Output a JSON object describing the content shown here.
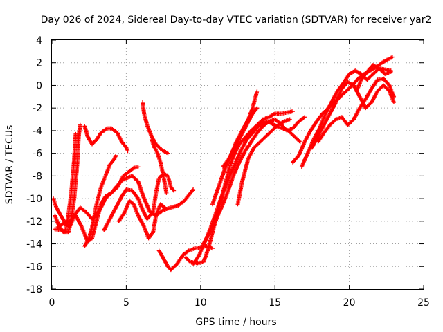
{
  "chart_data": {
    "type": "scatter",
    "title": "Day 026 of 2024, Sidereal Day-to-day VTEC variation (SDTVAR) for receiver yar2",
    "xlabel": "GPS time / hours",
    "ylabel": "SDTVAR / TECUs",
    "xlim": [
      0,
      25
    ],
    "ylim": [
      -18,
      4
    ],
    "x_ticks": [
      0,
      5,
      10,
      15,
      20,
      25
    ],
    "y_ticks": [
      -18,
      -16,
      -14,
      -12,
      -10,
      -8,
      -6,
      -4,
      -2,
      0,
      2,
      4
    ],
    "x_tick_labels": [
      "0",
      "5",
      "10",
      "15",
      "20",
      "25"
    ],
    "y_tick_labels": [
      "-18",
      "-16",
      "-14",
      "-12",
      "-10",
      "-8",
      "-6",
      "-4",
      "-2",
      "0",
      "2",
      "4"
    ],
    "grid": true,
    "marker": "plus",
    "color": "#ff0000",
    "series": [
      {
        "points": [
          [
            0.1,
            -10
          ],
          [
            0.3,
            -10.8
          ],
          [
            0.6,
            -11.5
          ],
          [
            0.9,
            -12.2
          ],
          [
            1.2,
            -12.5
          ],
          [
            1.5,
            -11.5
          ],
          [
            1.9,
            -10.8
          ],
          [
            2.3,
            -11.2
          ],
          [
            2.7,
            -11.8
          ],
          [
            3.0,
            -11.5
          ],
          [
            3.3,
            -10.8
          ],
          [
            3.6,
            -10.0
          ],
          [
            4.0,
            -9.5
          ],
          [
            4.3,
            -9.0
          ],
          [
            4.7,
            -8.4
          ],
          [
            5.0,
            -8.2
          ],
          [
            5.4,
            -8.0
          ],
          [
            5.8,
            -8.5
          ],
          [
            6.2,
            -10.0
          ],
          [
            6.6,
            -11.2
          ],
          [
            7.0,
            -11.5
          ],
          [
            7.5,
            -11.0
          ],
          [
            8.0,
            -10.8
          ],
          [
            8.5,
            -10.6
          ],
          [
            8.9,
            -10.2
          ],
          [
            9.2,
            -9.7
          ],
          [
            9.5,
            -9.2
          ]
        ]
      },
      {
        "points": [
          [
            0.2,
            -11.5
          ],
          [
            0.5,
            -12.5
          ],
          [
            0.8,
            -13.0
          ],
          [
            1.1,
            -13.0
          ],
          [
            1.3,
            -11.8
          ],
          [
            1.5,
            -10.0
          ],
          [
            1.7,
            -7.0
          ],
          [
            1.8,
            -4.5
          ],
          [
            1.9,
            -3.5
          ]
        ]
      },
      {
        "points": [
          [
            0.2,
            -12.7
          ],
          [
            0.6,
            -12.8
          ],
          [
            0.9,
            -12.9
          ],
          [
            1.1,
            -11.5
          ],
          [
            1.3,
            -9.5
          ],
          [
            1.5,
            -6.5
          ],
          [
            1.6,
            -4.3
          ]
        ]
      },
      {
        "points": [
          [
            0.4,
            -12.5
          ],
          [
            0.8,
            -12.2
          ],
          [
            1.2,
            -12.0
          ],
          [
            1.6,
            -11.5
          ],
          [
            2.0,
            -12.5
          ],
          [
            2.4,
            -13.8
          ],
          [
            2.7,
            -13.5
          ],
          [
            3.0,
            -12.0
          ],
          [
            3.3,
            -10.5
          ],
          [
            3.6,
            -9.8
          ],
          [
            4.0,
            -9.5
          ],
          [
            4.4,
            -9.0
          ],
          [
            4.8,
            -8.0
          ],
          [
            5.2,
            -7.6
          ],
          [
            5.5,
            -7.3
          ],
          [
            5.8,
            -7.2
          ]
        ]
      },
      {
        "points": [
          [
            2.2,
            -3.6
          ],
          [
            2.4,
            -4.5
          ],
          [
            2.7,
            -5.2
          ],
          [
            3.0,
            -4.8
          ],
          [
            3.3,
            -4.2
          ],
          [
            3.7,
            -3.8
          ],
          [
            4.0,
            -3.8
          ],
          [
            4.4,
            -4.2
          ],
          [
            4.7,
            -5.0
          ],
          [
            5.0,
            -5.5
          ],
          [
            5.1,
            -5.8
          ]
        ]
      },
      {
        "points": [
          [
            2.2,
            -14.2
          ],
          [
            2.5,
            -13.5
          ],
          [
            2.8,
            -12.0
          ],
          [
            3.0,
            -10.5
          ],
          [
            3.3,
            -9.0
          ],
          [
            3.6,
            -8.0
          ],
          [
            3.9,
            -7.0
          ],
          [
            4.2,
            -6.5
          ],
          [
            4.3,
            -6.2
          ]
        ]
      },
      {
        "points": [
          [
            3.5,
            -12.8
          ],
          [
            3.9,
            -11.8
          ],
          [
            4.3,
            -10.8
          ],
          [
            4.7,
            -9.8
          ],
          [
            5.0,
            -9.2
          ],
          [
            5.4,
            -9.3
          ],
          [
            5.8,
            -10.0
          ],
          [
            6.1,
            -11.0
          ],
          [
            6.4,
            -11.8
          ],
          [
            6.8,
            -11.2
          ],
          [
            7.0,
            -9.5
          ],
          [
            7.2,
            -8.2
          ],
          [
            7.5,
            -7.8
          ],
          [
            7.8,
            -8.0
          ],
          [
            8.0,
            -9.0
          ],
          [
            8.2,
            -9.3
          ]
        ]
      },
      {
        "points": [
          [
            4.5,
            -12.0
          ],
          [
            4.9,
            -11.2
          ],
          [
            5.2,
            -10.2
          ],
          [
            5.5,
            -10.5
          ],
          [
            5.8,
            -11.5
          ],
          [
            6.2,
            -12.5
          ],
          [
            6.5,
            -13.5
          ],
          [
            6.8,
            -13.0
          ],
          [
            7.0,
            -11.5
          ],
          [
            7.3,
            -10.5
          ],
          [
            7.6,
            -10.8
          ]
        ]
      },
      {
        "points": [
          [
            6.1,
            -1.5
          ],
          [
            6.2,
            -2.5
          ],
          [
            6.4,
            -3.5
          ],
          [
            6.7,
            -4.5
          ],
          [
            7.0,
            -5.2
          ],
          [
            7.3,
            -5.6
          ],
          [
            7.5,
            -5.8
          ],
          [
            7.8,
            -6.0
          ]
        ]
      },
      {
        "points": [
          [
            6.7,
            -4.8
          ],
          [
            6.9,
            -5.5
          ],
          [
            7.1,
            -6.0
          ],
          [
            7.3,
            -6.8
          ],
          [
            7.5,
            -8.0
          ],
          [
            7.7,
            -9.5
          ]
        ]
      },
      {
        "points": [
          [
            7.2,
            -14.6
          ],
          [
            7.5,
            -15.3
          ],
          [
            7.8,
            -16.0
          ],
          [
            8.0,
            -16.3
          ],
          [
            8.4,
            -15.8
          ],
          [
            8.8,
            -15.0
          ],
          [
            9.2,
            -14.6
          ],
          [
            9.6,
            -14.4
          ],
          [
            10.0,
            -14.3
          ],
          [
            10.4,
            -14.2
          ],
          [
            10.8,
            -14.4
          ]
        ]
      },
      {
        "points": [
          [
            9.0,
            -15.2
          ],
          [
            9.3,
            -15.6
          ],
          [
            9.8,
            -15.7
          ],
          [
            10.2,
            -15.6
          ],
          [
            10.5,
            -14.5
          ],
          [
            10.8,
            -13.0
          ],
          [
            11.1,
            -11.5
          ],
          [
            11.4,
            -10.0
          ],
          [
            11.7,
            -8.5
          ],
          [
            12.0,
            -7.0
          ],
          [
            12.3,
            -6.0
          ],
          [
            12.6,
            -5.2
          ],
          [
            13.0,
            -4.6
          ],
          [
            13.4,
            -4.0
          ],
          [
            13.8,
            -3.5
          ],
          [
            14.2,
            -3.0
          ],
          [
            14.6,
            -2.8
          ],
          [
            15.0,
            -2.5
          ],
          [
            15.4,
            -2.5
          ],
          [
            15.8,
            -2.4
          ],
          [
            16.2,
            -2.3
          ]
        ]
      },
      {
        "points": [
          [
            9.5,
            -15.8
          ],
          [
            9.9,
            -15.0
          ],
          [
            10.3,
            -13.8
          ],
          [
            10.7,
            -12.5
          ],
          [
            11.1,
            -11.0
          ],
          [
            11.5,
            -9.5
          ],
          [
            11.9,
            -8.2
          ],
          [
            12.3,
            -7.0
          ],
          [
            12.7,
            -5.8
          ],
          [
            13.1,
            -4.8
          ],
          [
            13.5,
            -4.2
          ],
          [
            13.9,
            -3.6
          ],
          [
            14.3,
            -3.2
          ],
          [
            14.7,
            -3.3
          ],
          [
            15.1,
            -3.6
          ],
          [
            15.5,
            -3.8
          ],
          [
            15.9,
            -4.0
          ],
          [
            16.3,
            -4.5
          ],
          [
            16.7,
            -5.0
          ]
        ]
      },
      {
        "points": [
          [
            10.2,
            -14.0
          ],
          [
            10.6,
            -13.0
          ],
          [
            11.0,
            -12.0
          ],
          [
            11.4,
            -10.8
          ],
          [
            11.8,
            -9.5
          ],
          [
            12.2,
            -8.0
          ],
          [
            12.6,
            -6.8
          ],
          [
            13.0,
            -5.8
          ],
          [
            13.4,
            -5.0
          ],
          [
            13.8,
            -4.2
          ],
          [
            14.2,
            -3.6
          ],
          [
            14.6,
            -3.2
          ],
          [
            15.0,
            -3.0
          ],
          [
            15.4,
            -3.4
          ],
          [
            15.8,
            -4.0
          ],
          [
            16.2,
            -3.8
          ],
          [
            16.6,
            -3.2
          ],
          [
            17.0,
            -2.8
          ]
        ]
      },
      {
        "points": [
          [
            10.8,
            -10.5
          ],
          [
            11.2,
            -9.0
          ],
          [
            11.6,
            -7.5
          ],
          [
            12.0,
            -6.3
          ],
          [
            12.4,
            -5.0
          ],
          [
            12.8,
            -4.0
          ],
          [
            13.2,
            -3.0
          ],
          [
            13.5,
            -2.0
          ],
          [
            13.8,
            -0.5
          ]
        ]
      },
      {
        "points": [
          [
            11.5,
            -7.2
          ],
          [
            11.9,
            -6.5
          ],
          [
            12.3,
            -5.5
          ],
          [
            12.7,
            -4.5
          ],
          [
            13.1,
            -3.5
          ],
          [
            13.5,
            -2.5
          ],
          [
            13.8,
            -2.0
          ]
        ]
      },
      {
        "points": [
          [
            12.5,
            -10.5
          ],
          [
            12.8,
            -8.5
          ],
          [
            13.2,
            -6.5
          ],
          [
            13.6,
            -5.5
          ],
          [
            14.0,
            -5.0
          ],
          [
            14.4,
            -4.5
          ],
          [
            14.8,
            -4.0
          ],
          [
            15.2,
            -3.5
          ],
          [
            15.6,
            -3.2
          ],
          [
            16.0,
            -3.0
          ]
        ]
      },
      {
        "points": [
          [
            16.2,
            -6.8
          ],
          [
            16.6,
            -6.2
          ],
          [
            17.0,
            -5.0
          ],
          [
            17.4,
            -4.0
          ],
          [
            17.8,
            -3.2
          ],
          [
            18.2,
            -2.5
          ],
          [
            18.6,
            -2.0
          ],
          [
            19.0,
            -1.5
          ],
          [
            19.4,
            -1.0
          ],
          [
            19.8,
            -0.5
          ],
          [
            20.2,
            0.0
          ],
          [
            20.6,
            0.6
          ],
          [
            21.0,
            1.0
          ],
          [
            21.4,
            1.3
          ],
          [
            21.8,
            1.6
          ],
          [
            22.2,
            2.0
          ],
          [
            22.6,
            2.3
          ],
          [
            22.9,
            2.5
          ]
        ]
      },
      {
        "points": [
          [
            16.8,
            -7.2
          ],
          [
            17.2,
            -6.0
          ],
          [
            17.6,
            -4.8
          ],
          [
            18.0,
            -3.8
          ],
          [
            18.4,
            -2.5
          ],
          [
            18.8,
            -1.5
          ],
          [
            19.2,
            -0.5
          ],
          [
            19.6,
            0.2
          ],
          [
            20.0,
            1.0
          ],
          [
            20.4,
            1.3
          ],
          [
            20.8,
            1.0
          ],
          [
            21.2,
            0.5
          ],
          [
            21.6,
            1.0
          ],
          [
            22.0,
            1.5
          ],
          [
            22.4,
            1.4
          ],
          [
            22.8,
            1.3
          ]
        ]
      },
      {
        "points": [
          [
            17.5,
            -5.5
          ],
          [
            17.9,
            -4.5
          ],
          [
            18.3,
            -3.5
          ],
          [
            18.7,
            -2.5
          ],
          [
            19.1,
            -1.5
          ],
          [
            19.5,
            -0.3
          ],
          [
            19.9,
            0.3
          ],
          [
            20.3,
            0.0
          ],
          [
            20.7,
            -1.0
          ],
          [
            21.1,
            -2.0
          ],
          [
            21.5,
            -1.5
          ],
          [
            21.9,
            -0.5
          ],
          [
            22.3,
            0.0
          ],
          [
            22.7,
            -0.5
          ],
          [
            23.0,
            -1.5
          ]
        ]
      },
      {
        "points": [
          [
            17.9,
            -5.0
          ],
          [
            18.3,
            -4.2
          ],
          [
            18.7,
            -3.5
          ],
          [
            19.1,
            -3.0
          ],
          [
            19.5,
            -2.8
          ],
          [
            19.9,
            -3.5
          ],
          [
            20.3,
            -3.0
          ],
          [
            20.7,
            -2.0
          ],
          [
            21.1,
            -1.2
          ],
          [
            21.5,
            -0.3
          ],
          [
            21.9,
            0.5
          ],
          [
            22.3,
            0.6
          ],
          [
            22.7,
            0.0
          ],
          [
            23.0,
            -1.0
          ]
        ]
      },
      {
        "points": [
          [
            20.5,
            -0.5
          ],
          [
            20.8,
            0.5
          ],
          [
            21.2,
            1.2
          ],
          [
            21.6,
            1.8
          ],
          [
            22.0,
            1.5
          ],
          [
            22.4,
            1.0
          ],
          [
            22.8,
            1.2
          ]
        ]
      }
    ]
  }
}
